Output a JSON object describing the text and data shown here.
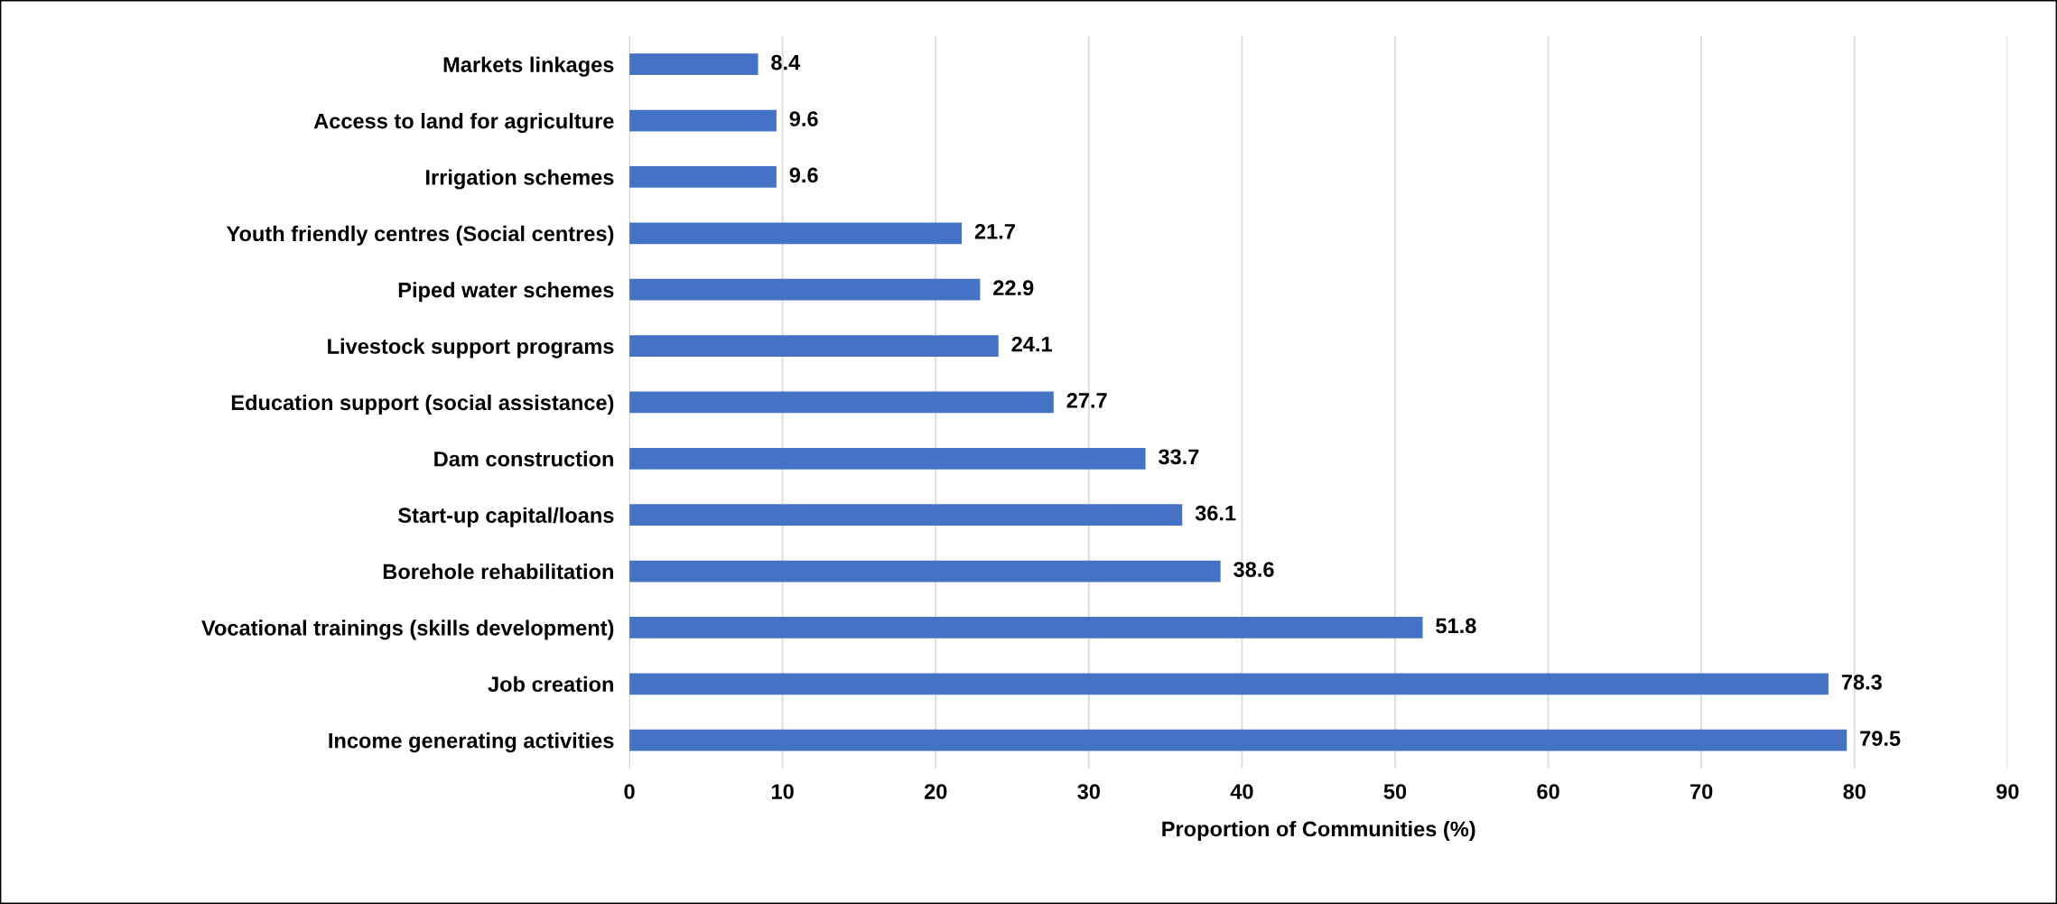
{
  "chart_data": {
    "type": "bar",
    "orientation": "horizontal",
    "xlabel": "Proportion of Communities (%)",
    "categories": [
      "Markets linkages",
      "Access to land for agriculture",
      "Irrigation schemes",
      "Youth friendly centres (Social centres)",
      "Piped water schemes",
      "Livestock support programs",
      "Education support (social assistance)",
      "Dam construction",
      "Start-up capital/loans",
      "Borehole rehabilitation",
      "Vocational trainings (skills development)",
      "Job creation",
      "Income generating activities"
    ],
    "values": [
      8.4,
      9.6,
      9.6,
      21.7,
      22.9,
      24.1,
      27.7,
      33.7,
      36.1,
      38.6,
      51.8,
      78.3,
      79.5
    ],
    "color": "#4472c4",
    "xlim": [
      0,
      90
    ],
    "xticks": [
      0,
      10,
      20,
      30,
      40,
      50,
      60,
      70,
      80,
      90
    ],
    "grid": "x",
    "data_labels": true
  }
}
